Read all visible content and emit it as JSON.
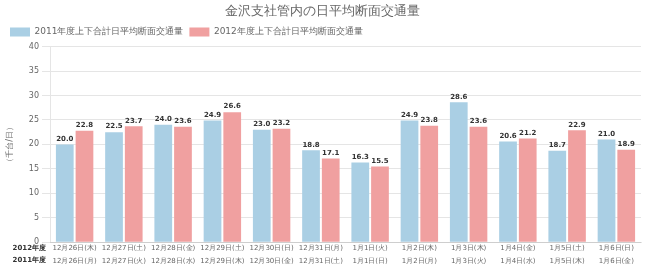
{
  "chart_data": {
    "type": "bar",
    "title": "金沢支社管内の日平均断面交通量",
    "ylabel": "（千台/日）",
    "category_headers": [
      "2012年度",
      "2011年度"
    ],
    "categories": [
      [
        "12月26日(木)",
        "12月26日(月)"
      ],
      [
        "12月27日(土)",
        "12月27日(火)"
      ],
      [
        "12月28日(金)",
        "12月28日(水)"
      ],
      [
        "12月29日(土)",
        "12月29日(木)"
      ],
      [
        "12月30日(日)",
        "12月30日(金)"
      ],
      [
        "12月31日(月)",
        "12月31日(土)"
      ],
      [
        "1月1日(火)",
        "1月1日(日)"
      ],
      [
        "1月2日(木)",
        "1月2日(月)"
      ],
      [
        "1月3日(木)",
        "1月3日(火)"
      ],
      [
        "1月4日(金)",
        "1月4日(水)"
      ],
      [
        "1月5日(土)",
        "1月5日(木)"
      ],
      [
        "1月6日(日)",
        "1月6日(金)"
      ]
    ],
    "series": [
      {
        "name": "2011年度上下合計日平均断面交通量",
        "color": "#aacfe4",
        "values": [
          20.0,
          22.5,
          24.0,
          24.9,
          23.0,
          18.8,
          16.3,
          24.9,
          28.6,
          20.6,
          18.7,
          21.0
        ],
        "value_labels": [
          "20.0",
          "22.5",
          "24.0",
          "24.9",
          "23.0",
          "18.8",
          "16.3",
          "24.9",
          "28.6",
          "20.6",
          "18.7",
          "21.0"
        ]
      },
      {
        "name": "2012年度上下合計日平均断面交通量",
        "color": "#f0a0a0",
        "values": [
          22.8,
          23.7,
          23.6,
          26.6,
          23.2,
          17.1,
          15.5,
          23.8,
          23.6,
          21.2,
          22.9,
          18.9
        ],
        "value_labels": [
          "22.8",
          "23.7",
          "23.6",
          "26.6",
          "23.2",
          "17.1",
          "15.5",
          "23.8",
          "23.6",
          "21.2",
          "22.9",
          "18.9"
        ]
      }
    ],
    "ylim": [
      0,
      40
    ],
    "yticks": [
      0,
      5,
      10,
      15,
      20,
      25,
      30,
      35,
      40
    ],
    "grid": true,
    "legend": "upper left",
    "data_labels": true
  }
}
